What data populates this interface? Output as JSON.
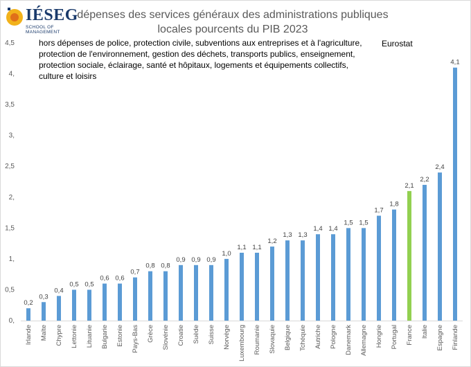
{
  "logo": {
    "text": "IÉSEG",
    "subtext": "SCHOOL OF MANAGEMENT"
  },
  "chart_data": {
    "type": "bar",
    "title": "dépenses des services généraux des administrations publiques locales pourcents du PIB 2023",
    "subtitle": "hors dépenses de police, protection civile, subventions aux entreprises et à l'agriculture, protection de l'environnement, gestion des déchets, transports publics, enseignement, protection sociale, éclairage, santé et hôpitaux, logements et équipements collectifs, culture et loisirs",
    "source": "Eurostat",
    "xlabel": "",
    "ylabel": "",
    "ylim": [
      0,
      4.5
    ],
    "yticks": [
      "0,",
      "0,5",
      "1,",
      "1,5",
      "2,",
      "2,5",
      "3,",
      "3,5",
      "4,",
      "4,5"
    ],
    "grid": false,
    "categories": [
      "Irlande",
      "Malte",
      "Chypre",
      "Lettonie",
      "Lituanie",
      "Bulgarie",
      "Estonie",
      "Pays-Bas",
      "Grèce",
      "Slovénie",
      "Croatie",
      "Suède",
      "Suisse",
      "Norvège",
      "Luxembourg",
      "Roumanie",
      "Slovaquie",
      "Belgique",
      "Tchéquie",
      "Autriche",
      "Pologne",
      "Danemark",
      "Allemagne",
      "Hongrie",
      "Portugal",
      "France",
      "Italie",
      "Espagne",
      "Finlande"
    ],
    "values": [
      0.2,
      0.3,
      0.4,
      0.5,
      0.5,
      0.6,
      0.6,
      0.7,
      0.8,
      0.8,
      0.9,
      0.9,
      0.9,
      1.0,
      1.1,
      1.1,
      1.2,
      1.3,
      1.3,
      1.4,
      1.4,
      1.5,
      1.5,
      1.7,
      1.8,
      2.1,
      2.2,
      2.4,
      4.1
    ],
    "data_labels": [
      "0,2",
      "0,3",
      "0,4",
      "0,5",
      "0,5",
      "0,6",
      "0,6",
      "0,7",
      "0,8",
      "0,8",
      "0,9",
      "0,9",
      "0,9",
      "1,0",
      "1,1",
      "1,1",
      "1,2",
      "1,3",
      "1,3",
      "1,4",
      "1,4",
      "1,5",
      "1,5",
      "1,7",
      "1,8",
      "2,1",
      "2,2",
      "2,4",
      "4,1"
    ],
    "colors": {
      "default": "#5b9bd5",
      "highlight": "#92d050"
    },
    "highlight_category": "France"
  }
}
